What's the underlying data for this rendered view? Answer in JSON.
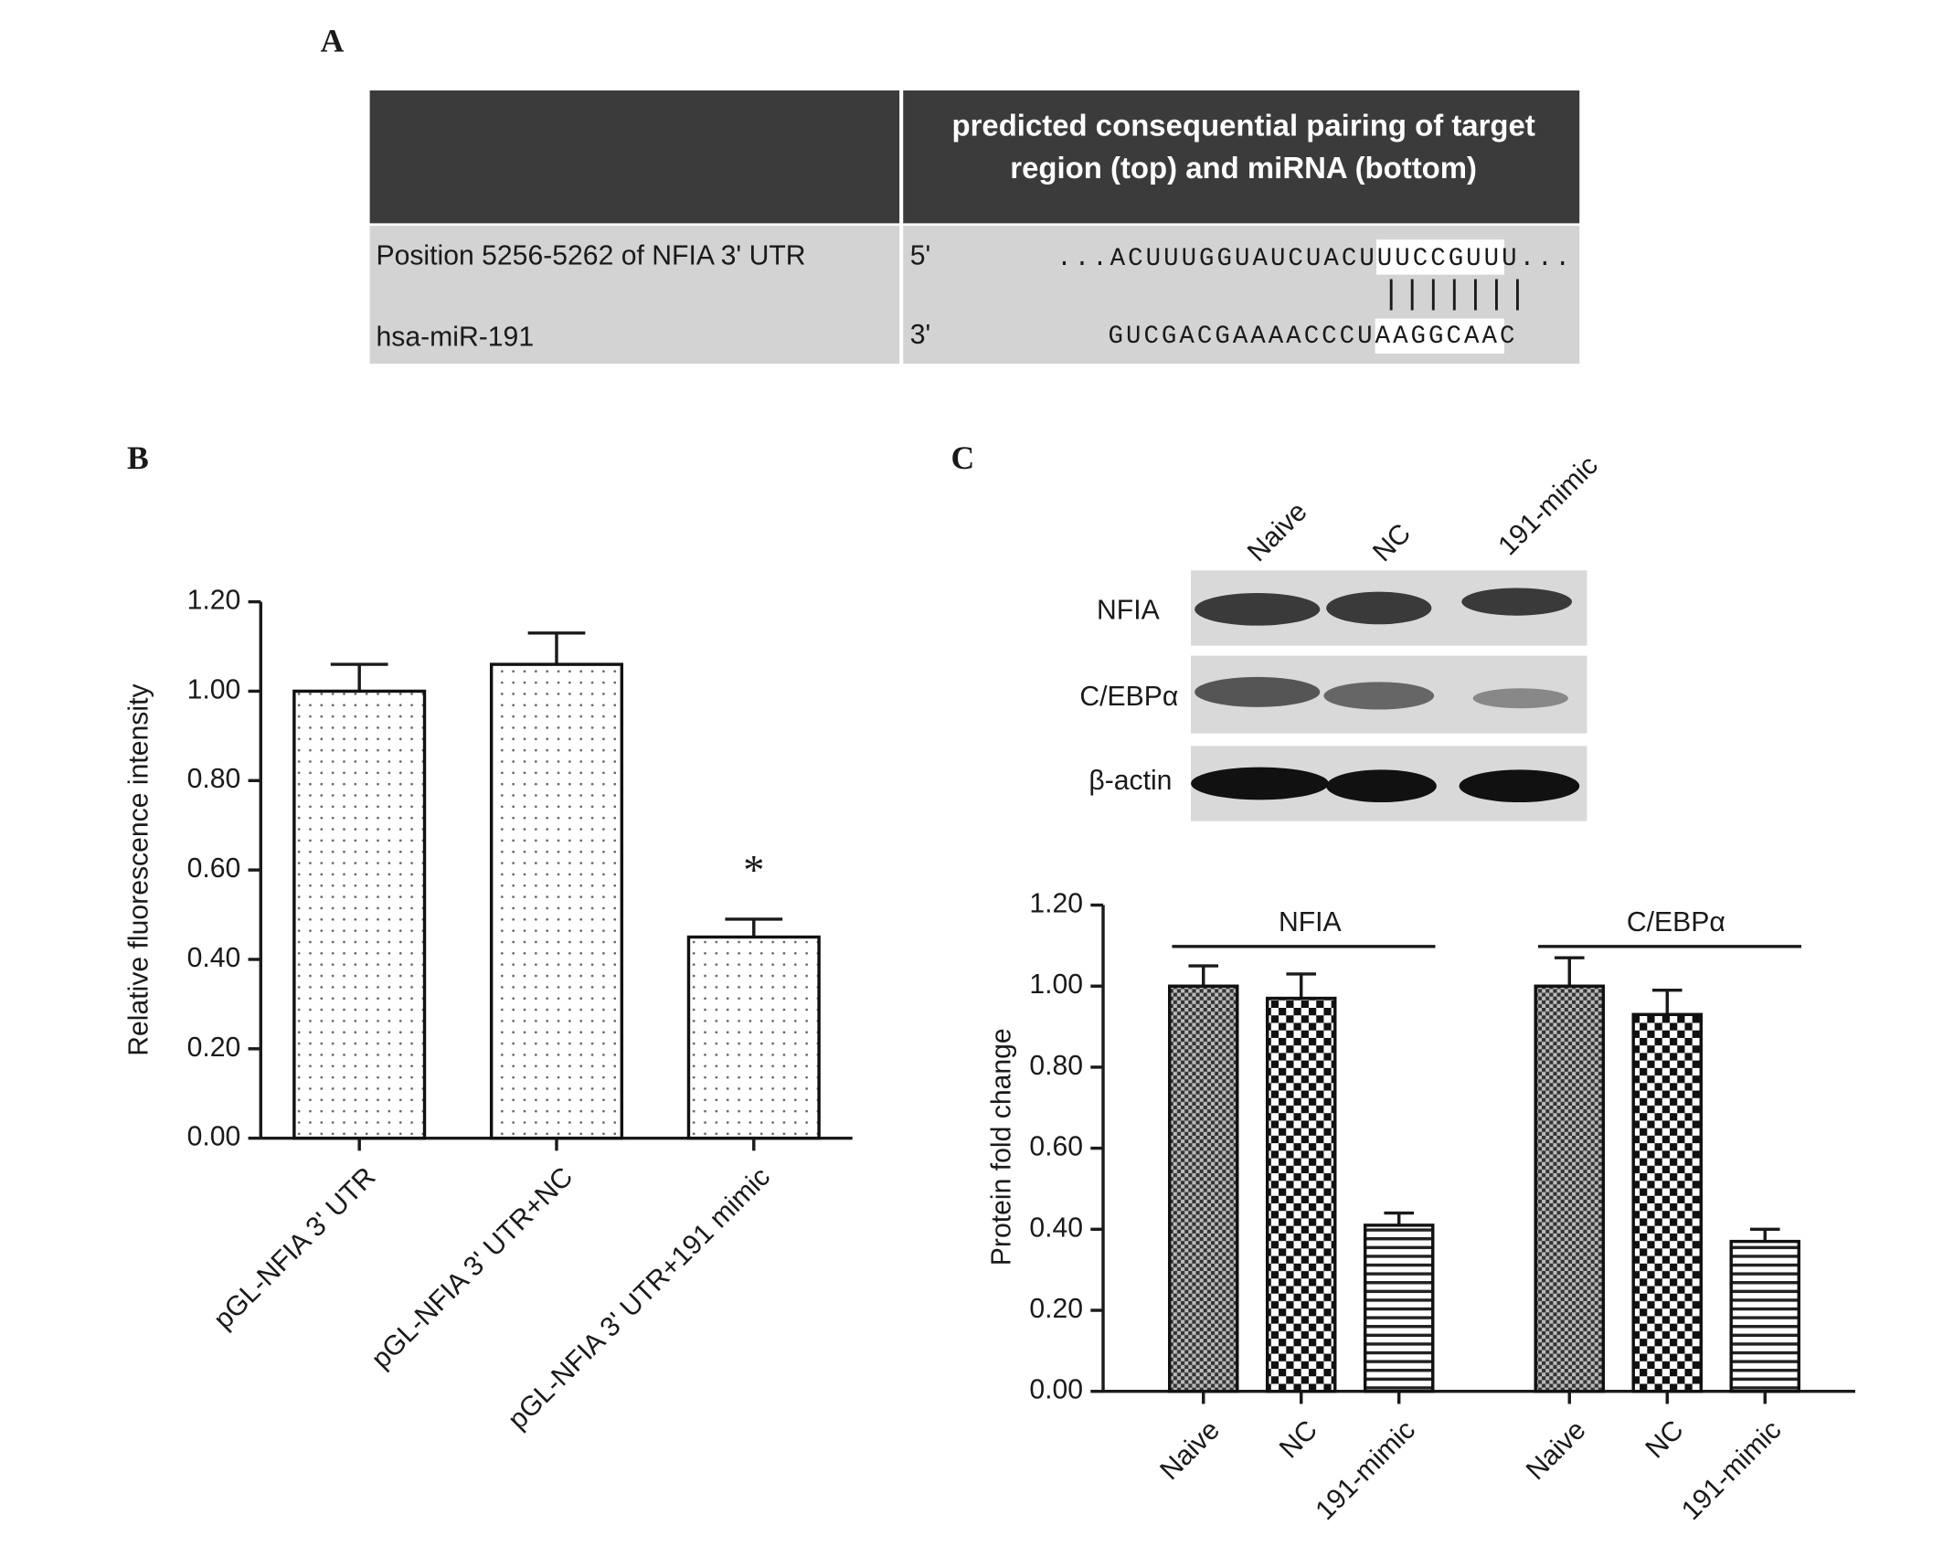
{
  "panels": [
    "A",
    "B",
    "C"
  ],
  "table": {
    "header": "predicted consequential pairing of target region (top) and miRNA (bottom)",
    "rows": [
      {
        "label": "Position 5256-5262 of NFIA 3' UTR",
        "end": "5'",
        "sequence": [
          "...ACUUUGGUAUCUACU",
          "UUCCGUU",
          "U..."
        ]
      },
      {
        "label": "hsa-miR-191",
        "end": "3'",
        "sequence": [
          "GUCGACGAAAACCCU",
          "AAGGCAA",
          "C"
        ]
      }
    ],
    "pairing": "|||||||"
  },
  "blot": {
    "lanes": [
      "Naive",
      "NC",
      "191-mimic"
    ],
    "rows": [
      "NFIA",
      "C/EBPα",
      "β-actin"
    ]
  },
  "chart_data": [
    {
      "type": "bar",
      "ylabel": "Relative fluorescence intensity",
      "categories": [
        "pGL-NFIA 3' UTR",
        "pGL-NFIA 3' UTR+NC",
        "pGL-NFIA 3' UTR+191 mimic"
      ],
      "values": [
        1.0,
        1.06,
        0.45
      ],
      "errors": [
        0.06,
        0.07,
        0.04
      ],
      "significance": [
        null,
        null,
        "*"
      ],
      "ylim": [
        0,
        1.2
      ],
      "yticks": [
        {
          "value": 0,
          "label": "0.00"
        },
        {
          "value": 0.2,
          "label": "0.20"
        },
        {
          "value": 0.4,
          "label": "0.40"
        },
        {
          "value": 0.6,
          "label": "0.60"
        },
        {
          "value": 0.8,
          "label": "0.80"
        },
        {
          "value": 1.0,
          "label": "1.00"
        },
        {
          "value": 1.2,
          "label": "1.20"
        }
      ]
    },
    {
      "type": "groupedbar",
      "ylabel": "Protein fold change",
      "categories": [
        "Naive",
        "NC",
        "191-mimic"
      ],
      "series": [
        {
          "name": "NFIA",
          "values": [
            1.0,
            0.97,
            0.41
          ],
          "errors": [
            0.05,
            0.06,
            0.03
          ]
        },
        {
          "name": "C/EBPα",
          "values": [
            1.0,
            0.93,
            0.37
          ],
          "errors": [
            0.07,
            0.06,
            0.03
          ]
        }
      ],
      "ylim": [
        0,
        1.2
      ],
      "yticks": [
        {
          "value": 0,
          "label": "0.00"
        },
        {
          "value": 0.2,
          "label": "0.20"
        },
        {
          "value": 0.4,
          "label": "0.40"
        },
        {
          "value": 0.6,
          "label": "0.60"
        },
        {
          "value": 0.8,
          "label": "0.80"
        },
        {
          "value": 1.0,
          "label": "1.00"
        },
        {
          "value": 1.2,
          "label": "1.20"
        }
      ]
    }
  ]
}
